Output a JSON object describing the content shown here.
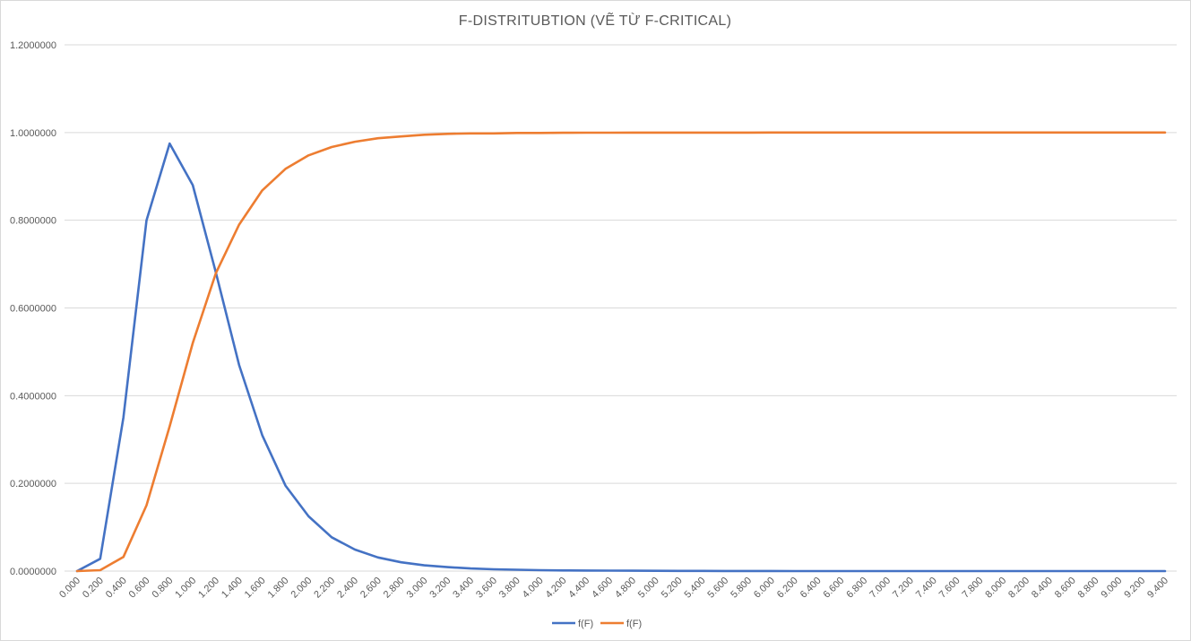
{
  "chart_data": {
    "type": "line",
    "title": "F-DISTRITUBTION (VẼ TỪ F-CRITICAL)",
    "xlabel": "",
    "ylabel": "",
    "ylim": [
      0,
      1.2
    ],
    "yticks": [
      "0.0000000",
      "0.2000000",
      "0.4000000",
      "0.6000000",
      "0.8000000",
      "1.0000000",
      "1.2000000"
    ],
    "ytick_values": [
      0,
      0.2,
      0.4,
      0.6,
      0.8,
      1.0,
      1.2
    ],
    "x": [
      "0.000",
      "0.200",
      "0.400",
      "0.600",
      "0.800",
      "1.000",
      "1.200",
      "1.400",
      "1.600",
      "1.800",
      "2.000",
      "2.200",
      "2.400",
      "2.600",
      "2.800",
      "3.000",
      "3.200",
      "3.400",
      "3.600",
      "3.800",
      "4.000",
      "4.200",
      "4.400",
      "4.600",
      "4.800",
      "5.000",
      "5.200",
      "5.400",
      "5.600",
      "5.800",
      "6.000",
      "6.200",
      "6.400",
      "6.600",
      "6.800",
      "7.000",
      "7.200",
      "7.400",
      "7.600",
      "7.800",
      "8.000",
      "8.200",
      "8.400",
      "8.600",
      "8.800",
      "9.000",
      "9.200",
      "9.400"
    ],
    "grid": true,
    "legend_position": "bottom",
    "series": [
      {
        "name": "f(F)",
        "color": "#4472c4",
        "values": [
          0.0,
          0.028,
          0.35,
          0.8,
          0.975,
          0.88,
          0.68,
          0.47,
          0.31,
          0.195,
          0.125,
          0.077,
          0.049,
          0.031,
          0.02,
          0.013,
          0.009,
          0.006,
          0.004,
          0.003,
          0.002,
          0.0015,
          0.0012,
          0.001,
          0.0008,
          0.0006,
          0.0005,
          0.0004,
          0.0003,
          0.0002,
          0.0002,
          0.0001,
          0.0001,
          0.0001,
          0.0001,
          0.0001,
          0,
          0,
          0,
          0,
          0,
          0,
          0,
          0,
          0,
          0,
          0,
          0
        ]
      },
      {
        "name": "f(F)",
        "color": "#ed7d31",
        "values": [
          0.0,
          0.002,
          0.032,
          0.15,
          0.33,
          0.52,
          0.68,
          0.79,
          0.868,
          0.917,
          0.948,
          0.967,
          0.979,
          0.987,
          0.991,
          0.995,
          0.997,
          0.998,
          0.998,
          0.999,
          0.999,
          0.9995,
          0.9996,
          0.9997,
          0.9998,
          0.9998,
          0.9999,
          0.9999,
          0.9999,
          0.9999,
          1.0,
          1.0,
          1.0,
          1.0,
          1.0,
          1.0,
          1.0,
          1.0,
          1.0,
          1.0,
          1.0,
          1.0,
          1.0,
          1.0,
          1.0,
          1.0,
          1.0,
          1.0
        ]
      }
    ]
  }
}
